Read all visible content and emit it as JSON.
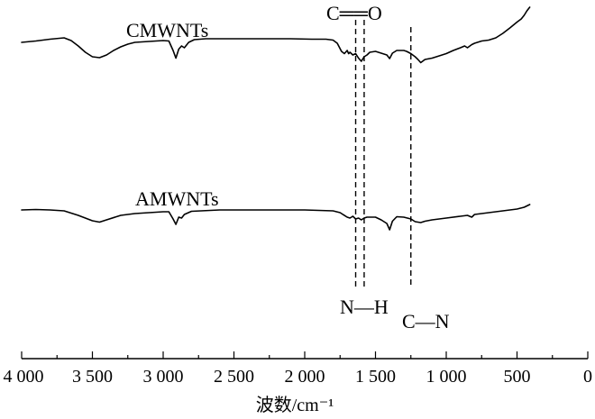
{
  "chart_data": {
    "type": "line",
    "xlabel": "波数/cm⁻¹",
    "xlim": [
      4000,
      0
    ],
    "x_reversed": true,
    "x_ticks": [
      4000,
      3500,
      3000,
      2500,
      2000,
      1500,
      1000,
      500,
      0
    ],
    "x_tick_labels": [
      "4 000",
      "3 500",
      "3 000",
      "2 500",
      "2 000",
      "1 500",
      "1 000",
      "500",
      "0"
    ],
    "series": [
      {
        "name": "CMWNTs",
        "x": [
          4000,
          3900,
          3800,
          3700,
          3650,
          3600,
          3550,
          3500,
          3450,
          3400,
          3350,
          3300,
          3250,
          3200,
          3100,
          3000,
          2960,
          2930,
          2910,
          2890,
          2870,
          2850,
          2820,
          2780,
          2700,
          2500,
          2300,
          2100,
          1950,
          1850,
          1800,
          1770,
          1740,
          1720,
          1700,
          1690,
          1680,
          1660,
          1640,
          1620,
          1600,
          1580,
          1560,
          1540,
          1500,
          1460,
          1420,
          1400,
          1380,
          1350,
          1300,
          1280,
          1250,
          1220,
          1200,
          1180,
          1150,
          1100,
          1050,
          1000,
          950,
          900,
          870,
          850,
          820,
          800,
          750,
          700,
          650,
          600,
          550,
          500,
          470,
          450,
          430,
          410
        ],
        "y": [
          0.3,
          0.33,
          0.37,
          0.4,
          0.34,
          0.22,
          0.08,
          -0.02,
          -0.04,
          0.02,
          0.12,
          0.2,
          0.26,
          0.3,
          0.32,
          0.34,
          0.33,
          0.12,
          -0.05,
          0.15,
          0.22,
          0.18,
          0.3,
          0.36,
          0.38,
          0.38,
          0.38,
          0.38,
          0.37,
          0.37,
          0.35,
          0.28,
          0.1,
          0.05,
          0.12,
          0.05,
          0.08,
          0.02,
          0.05,
          -0.05,
          -0.12,
          -0.02,
          0.02,
          0.08,
          0.1,
          0.06,
          0.02,
          -0.06,
          0.06,
          0.12,
          0.12,
          0.1,
          0.05,
          -0.02,
          -0.08,
          -0.15,
          -0.08,
          -0.05,
          0.0,
          0.05,
          0.12,
          0.18,
          0.22,
          0.18,
          0.25,
          0.28,
          0.33,
          0.35,
          0.4,
          0.5,
          0.62,
          0.75,
          0.82,
          0.9,
          1.0,
          1.08
        ]
      },
      {
        "name": "AMWNTs",
        "x": [
          4000,
          3900,
          3800,
          3700,
          3600,
          3500,
          3450,
          3400,
          3300,
          3200,
          3100,
          3000,
          2960,
          2930,
          2910,
          2890,
          2870,
          2850,
          2800,
          2600,
          2400,
          2200,
          2000,
          1900,
          1800,
          1750,
          1700,
          1680,
          1660,
          1640,
          1620,
          1600,
          1580,
          1560,
          1500,
          1460,
          1420,
          1400,
          1380,
          1350,
          1300,
          1250,
          1220,
          1180,
          1150,
          1100,
          1000,
          900,
          850,
          820,
          800,
          700,
          600,
          500,
          450,
          410
        ],
        "y": [
          0.3,
          0.31,
          0.3,
          0.28,
          0.18,
          0.06,
          0.03,
          0.08,
          0.18,
          0.22,
          0.24,
          0.26,
          0.26,
          0.1,
          -0.02,
          0.14,
          0.12,
          0.2,
          0.27,
          0.3,
          0.3,
          0.3,
          0.3,
          0.29,
          0.28,
          0.24,
          0.14,
          0.12,
          0.16,
          0.1,
          0.12,
          0.08,
          0.12,
          0.14,
          0.14,
          0.08,
          0.0,
          -0.14,
          0.05,
          0.15,
          0.14,
          0.1,
          0.04,
          0.02,
          0.05,
          0.08,
          0.12,
          0.16,
          0.18,
          0.14,
          0.2,
          0.24,
          0.28,
          0.32,
          0.36,
          0.42
        ]
      }
    ],
    "annotations": [
      {
        "text": "C══O"
      },
      {
        "text": "N—H"
      },
      {
        "text": "C—N"
      }
    ],
    "reference_lines_x": [
      1640,
      1580,
      1250
    ],
    "grid": false,
    "legend": "inline labels"
  }
}
